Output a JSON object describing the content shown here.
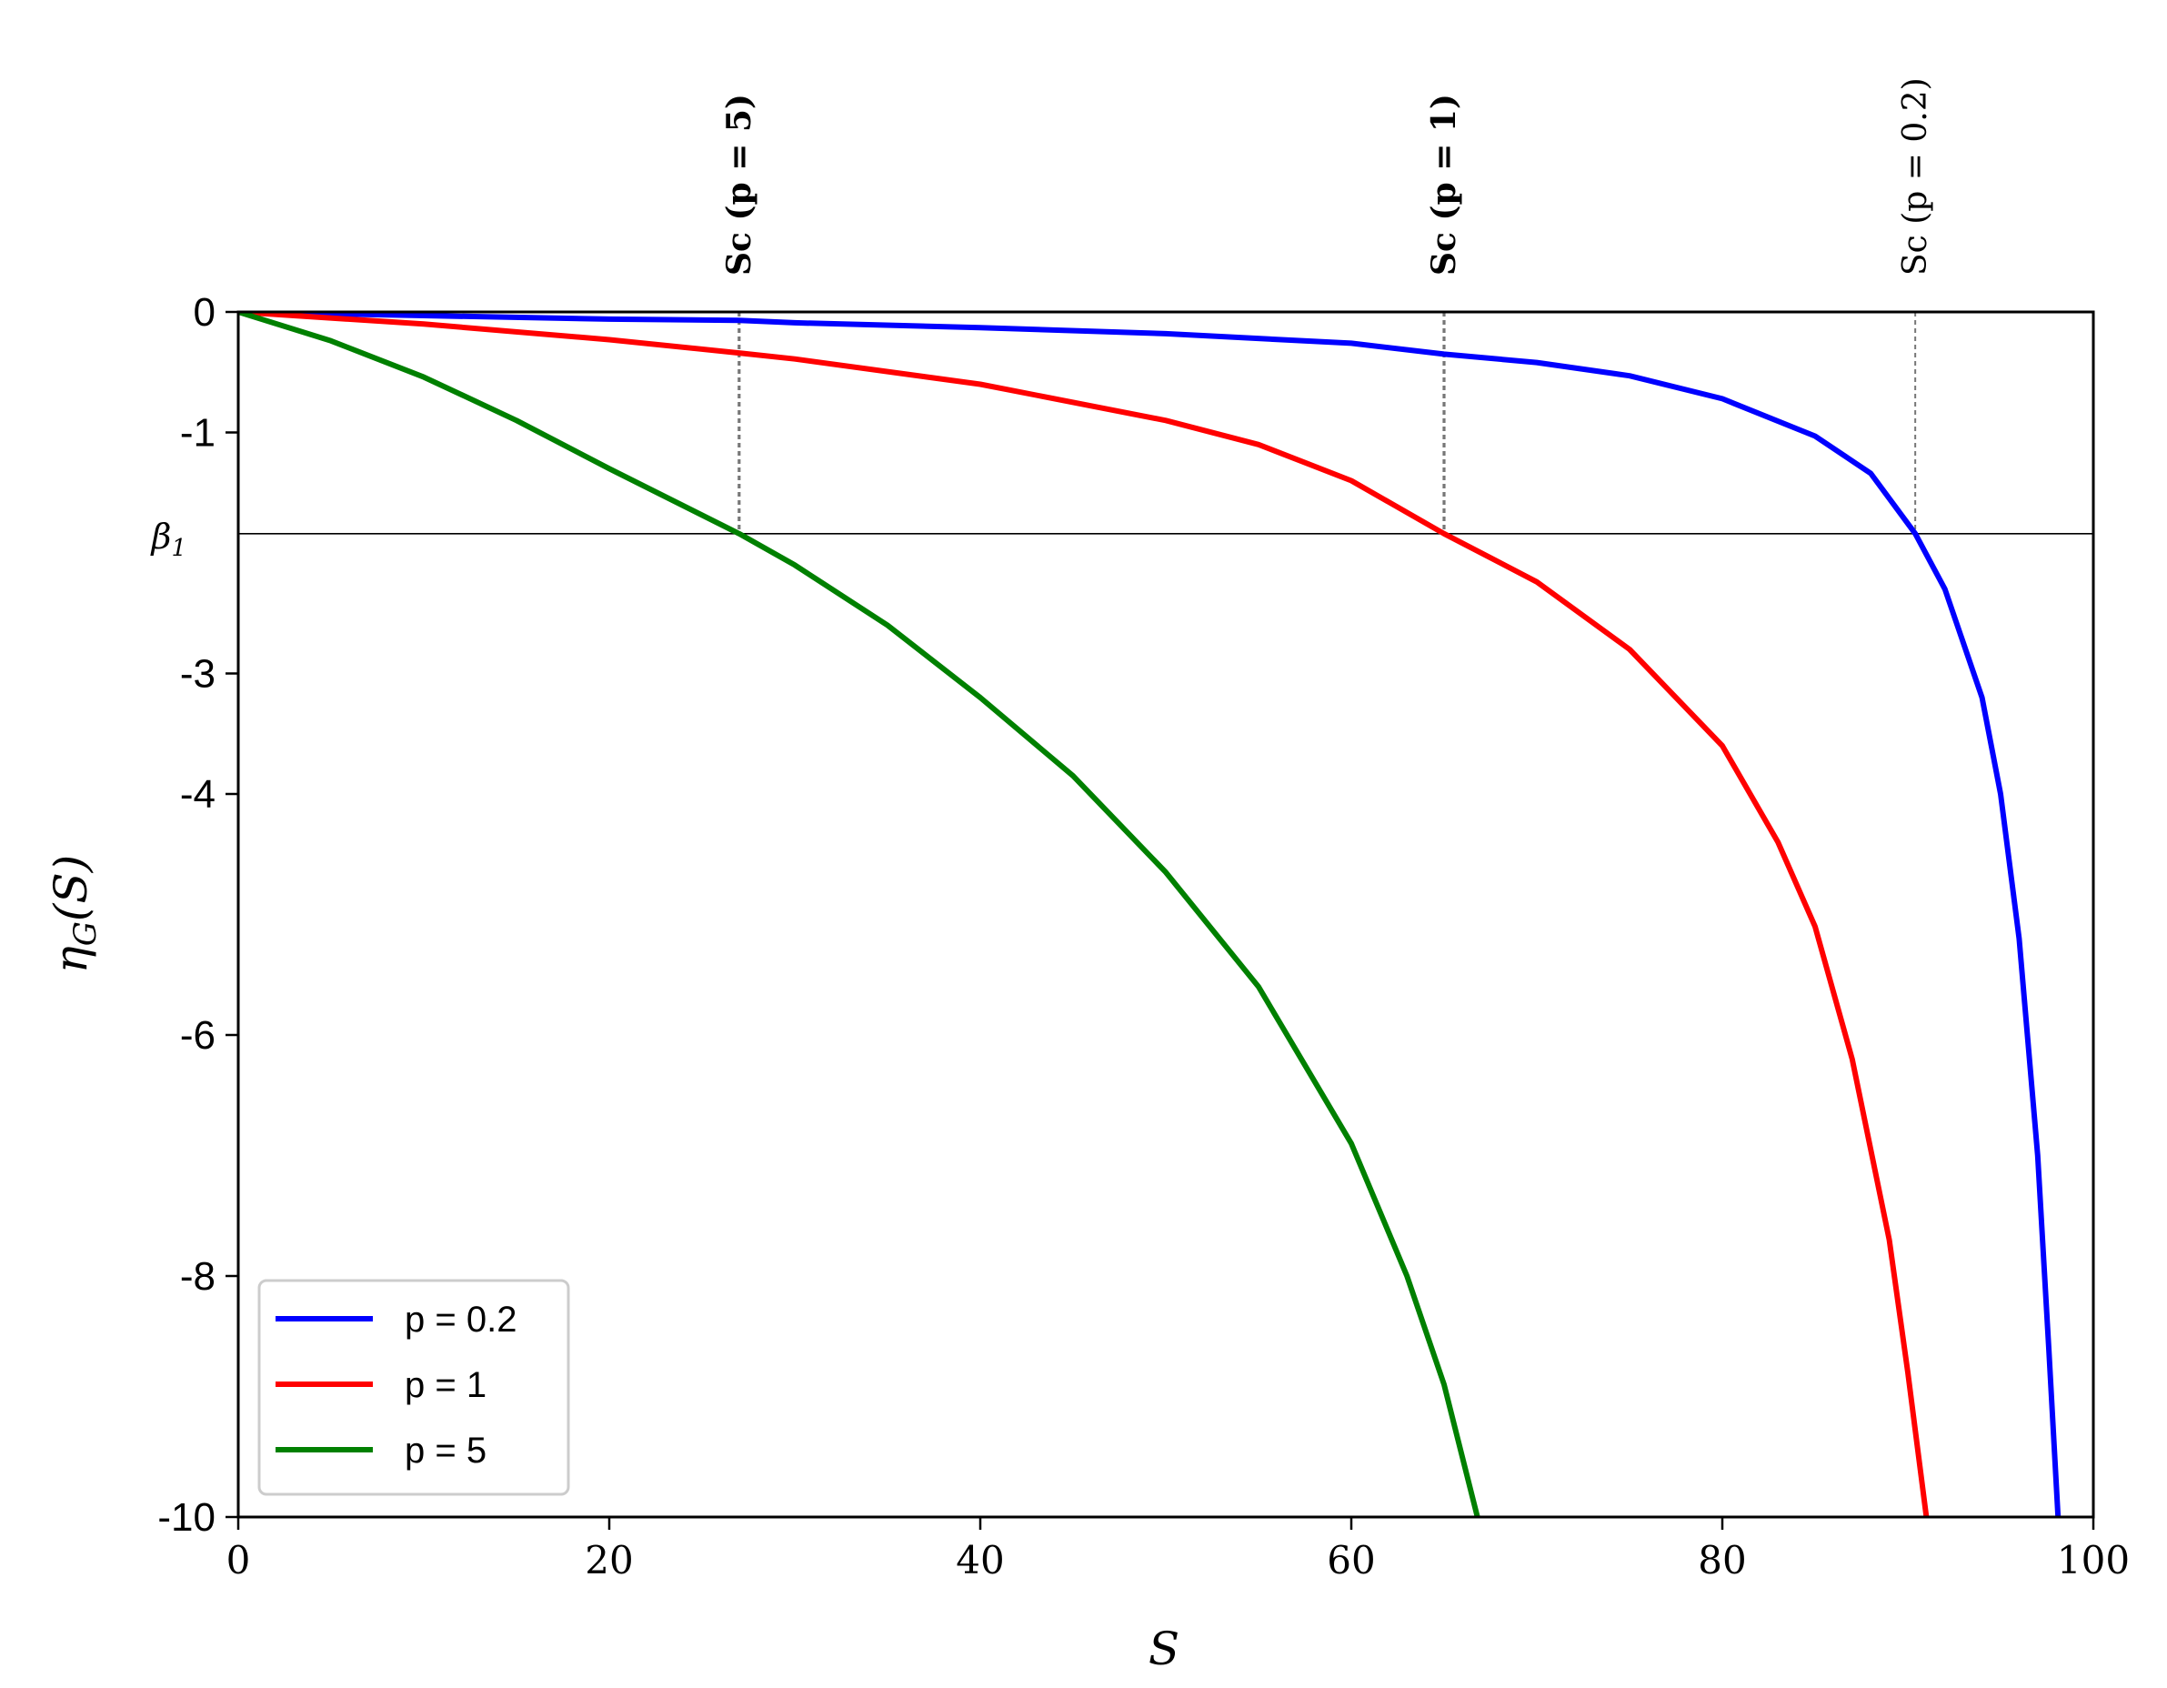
{
  "chart_data": {
    "type": "line",
    "xlabel": "S",
    "ylabel": "ηG(S)",
    "xlim": [
      0,
      100
    ],
    "ylim": [
      -10,
      0
    ],
    "x_ticks": [
      {
        "value": 0,
        "label": "0"
      },
      {
        "value": 20,
        "label": "20"
      },
      {
        "value": 40,
        "label": "40"
      },
      {
        "value": 60,
        "label": "60"
      },
      {
        "value": 80,
        "label": "80"
      },
      {
        "value": 100,
        "label": "100"
      }
    ],
    "y_ticks": [
      {
        "value": 0,
        "label": "0"
      },
      {
        "value": -1,
        "label": "-1"
      },
      {
        "value": -3,
        "label": "-3"
      },
      {
        "value": -4,
        "label": "-4"
      },
      {
        "value": -6,
        "label": "-6"
      },
      {
        "value": -8,
        "label": "-8"
      },
      {
        "value": -10,
        "label": "-10"
      }
    ],
    "hline": {
      "y": -1.84,
      "label": "β1"
    },
    "vlines": [
      {
        "x": 27,
        "label": "Sc (p = 5)",
        "bold": true
      },
      {
        "x": 65,
        "label": "Sc (p = 1)",
        "bold": true
      },
      {
        "x": 90.4,
        "label": "Sc (p = 0.2)",
        "bold": false
      }
    ],
    "legend": {
      "position": "lower-left",
      "entries": [
        "p = 0.2",
        "p = 1",
        "p = 5"
      ]
    },
    "series": [
      {
        "name": "p = 0.2",
        "color": "#0000ff",
        "points": [
          [
            0,
            0
          ],
          [
            10,
            -0.03
          ],
          [
            20,
            -0.06
          ],
          [
            27,
            -0.07
          ],
          [
            30,
            -0.09
          ],
          [
            40,
            -0.13
          ],
          [
            50,
            -0.18
          ],
          [
            60,
            -0.26
          ],
          [
            65,
            -0.35
          ],
          [
            70,
            -0.42
          ],
          [
            75,
            -0.53
          ],
          [
            80,
            -0.72
          ],
          [
            85,
            -1.03
          ],
          [
            88,
            -1.34
          ],
          [
            90.4,
            -1.84
          ],
          [
            92,
            -2.3
          ],
          [
            94,
            -3.2
          ],
          [
            95,
            -4.0
          ],
          [
            96,
            -5.2
          ],
          [
            97,
            -7.0
          ],
          [
            97.6,
            -8.6
          ],
          [
            98.1,
            -10
          ]
        ]
      },
      {
        "name": "p = 1",
        "color": "#ff0000",
        "points": [
          [
            0,
            0
          ],
          [
            10,
            -0.1
          ],
          [
            20,
            -0.23
          ],
          [
            27,
            -0.34
          ],
          [
            30,
            -0.39
          ],
          [
            40,
            -0.6
          ],
          [
            50,
            -0.9
          ],
          [
            55,
            -1.1
          ],
          [
            60,
            -1.4
          ],
          [
            65,
            -1.84
          ],
          [
            70,
            -2.24
          ],
          [
            75,
            -2.8
          ],
          [
            80,
            -3.6
          ],
          [
            83,
            -4.4
          ],
          [
            85,
            -5.1
          ],
          [
            87,
            -6.2
          ],
          [
            89,
            -7.7
          ],
          [
            90,
            -8.8
          ],
          [
            91,
            -10
          ]
        ]
      },
      {
        "name": "p = 5",
        "color": "#008000",
        "points": [
          [
            0,
            0
          ],
          [
            5,
            -0.24
          ],
          [
            10,
            -0.54
          ],
          [
            15,
            -0.9
          ],
          [
            20,
            -1.3
          ],
          [
            27,
            -1.84
          ],
          [
            30,
            -2.1
          ],
          [
            35,
            -2.6
          ],
          [
            40,
            -3.2
          ],
          [
            45,
            -3.85
          ],
          [
            50,
            -4.65
          ],
          [
            55,
            -5.6
          ],
          [
            60,
            -6.9
          ],
          [
            63,
            -8.0
          ],
          [
            65,
            -8.9
          ],
          [
            66.8,
            -10
          ]
        ]
      }
    ]
  }
}
